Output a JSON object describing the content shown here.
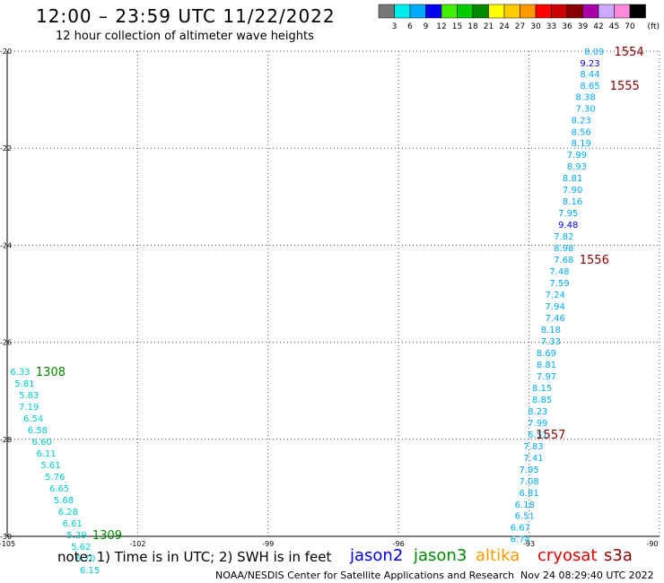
{
  "header": {
    "title": "12:00 – 23:59 UTC 11/22/2022",
    "subtitle": "12 hour collection of altimeter wave heights"
  },
  "scale": {
    "labels": [
      "3",
      "6",
      "9",
      "12",
      "15",
      "18",
      "21",
      "24",
      "27",
      "30",
      "33",
      "36",
      "39",
      "42",
      "45",
      "70"
    ],
    "unit": "(ft)",
    "colors": [
      "#777777",
      "#00eeee",
      "#00aaff",
      "#0000ee",
      "#44ee00",
      "#00cc00",
      "#008800",
      "#ffff00",
      "#ffcc00",
      "#ff9900",
      "#ff0000",
      "#cc0000",
      "#880000",
      "#aa00aa",
      "#ccaaff",
      "#ff88dd",
      "#000000"
    ]
  },
  "footer": {
    "note": "note:  1) Time is in UTC; 2) SWH is in feet",
    "satellites": [
      {
        "name": "jason2",
        "color": "#0000dd"
      },
      {
        "name": "jason3",
        "color": "#008800"
      },
      {
        "name": "altika",
        "color": "#ff9900"
      },
      {
        "name": "cryosat",
        "color": "#dd0000"
      },
      {
        "name": "s3a",
        "color": "#880000"
      }
    ],
    "credit": "NOAA/NESDIS Center for Satellite Applications and Research",
    "timestamp": "Nov 24 08:29:40 UTC 2022"
  },
  "chart_data": {
    "type": "scatter",
    "title": "12:00 – 23:59 UTC 11/22/2022",
    "subtitle": "12 hour collection of altimeter wave heights",
    "xlim": [
      -105,
      -90
    ],
    "ylim": [
      -30,
      -20
    ],
    "x_ticks": [
      "-105",
      "-102",
      "-99",
      "-96",
      "-93",
      "-90"
    ],
    "y_ticks": [
      "-20",
      "-22",
      "-24",
      "-26",
      "-28",
      "-30"
    ],
    "grid": true,
    "series": [
      {
        "name": "s3a",
        "color": "#880000",
        "points": [
          {
            "x": -91.5,
            "y": -20.0,
            "v": "8.09",
            "c": "#00aaff"
          },
          {
            "x": -91.6,
            "y": -20.24,
            "v": "9.23",
            "c": "#0000ee"
          },
          {
            "x": -91.6,
            "y": -20.46,
            "v": "8.44",
            "c": "#00aaff"
          },
          {
            "x": -91.6,
            "y": -20.7,
            "v": "8.65",
            "c": "#00aaff"
          },
          {
            "x": -91.7,
            "y": -20.93,
            "v": "8.38",
            "c": "#00aaff"
          },
          {
            "x": -91.7,
            "y": -21.17,
            "v": "7.30",
            "c": "#00aaff"
          },
          {
            "x": -91.8,
            "y": -21.41,
            "v": "8.23",
            "c": "#00aaff"
          },
          {
            "x": -91.8,
            "y": -21.65,
            "v": "8.56",
            "c": "#00aaff"
          },
          {
            "x": -91.8,
            "y": -21.89,
            "v": "8.19",
            "c": "#00aaff"
          },
          {
            "x": -91.9,
            "y": -22.13,
            "v": "7.99",
            "c": "#00aaff"
          },
          {
            "x": -91.9,
            "y": -22.37,
            "v": "8.93",
            "c": "#00aaff"
          },
          {
            "x": -92.0,
            "y": -22.61,
            "v": "8.81",
            "c": "#00aaff"
          },
          {
            "x": -92.0,
            "y": -22.85,
            "v": "7.90",
            "c": "#00aaff"
          },
          {
            "x": -92.0,
            "y": -23.09,
            "v": "8.16",
            "c": "#00aaff"
          },
          {
            "x": -92.1,
            "y": -23.33,
            "v": "7.95",
            "c": "#00aaff"
          },
          {
            "x": -92.1,
            "y": -23.57,
            "v": "9.48",
            "c": "#0000ee"
          },
          {
            "x": -92.2,
            "y": -23.81,
            "v": "7.82",
            "c": "#00aaff"
          },
          {
            "x": -92.2,
            "y": -24.05,
            "v": "8.98",
            "c": "#00aaff"
          },
          {
            "x": -92.2,
            "y": -24.29,
            "v": "7.68",
            "c": "#00aaff"
          },
          {
            "x": -92.3,
            "y": -24.53,
            "v": "7.48",
            "c": "#00aaff"
          },
          {
            "x": -92.3,
            "y": -24.77,
            "v": "7.59",
            "c": "#00aaff"
          },
          {
            "x": -92.4,
            "y": -25.01,
            "v": "7.24",
            "c": "#00aaff"
          },
          {
            "x": -92.4,
            "y": -25.25,
            "v": "7.94",
            "c": "#00aaff"
          },
          {
            "x": -92.4,
            "y": -25.49,
            "v": "7.46",
            "c": "#00aaff"
          },
          {
            "x": -92.5,
            "y": -25.73,
            "v": "8.18",
            "c": "#00aaff"
          },
          {
            "x": -92.5,
            "y": -25.97,
            "v": "7.33",
            "c": "#00aaff"
          },
          {
            "x": -92.6,
            "y": -26.21,
            "v": "8.69",
            "c": "#00aaff"
          },
          {
            "x": -92.6,
            "y": -26.45,
            "v": "8.81",
            "c": "#00aaff"
          },
          {
            "x": -92.6,
            "y": -26.69,
            "v": "7.97",
            "c": "#00aaff"
          },
          {
            "x": -92.7,
            "y": -26.93,
            "v": "8.15",
            "c": "#00aaff"
          },
          {
            "x": -92.7,
            "y": -27.17,
            "v": "8.85",
            "c": "#00aaff"
          },
          {
            "x": -92.8,
            "y": -27.41,
            "v": "8.23",
            "c": "#00aaff"
          },
          {
            "x": -92.8,
            "y": -27.65,
            "v": "7.99",
            "c": "#00aaff"
          },
          {
            "x": -92.8,
            "y": -27.89,
            "v": "6.51",
            "c": "#00aaff"
          },
          {
            "x": -92.9,
            "y": -28.13,
            "v": "7.83",
            "c": "#00aaff"
          },
          {
            "x": -92.9,
            "y": -28.37,
            "v": "7.41",
            "c": "#00aaff"
          },
          {
            "x": -93.0,
            "y": -28.61,
            "v": "7.95",
            "c": "#00aaff"
          },
          {
            "x": -93.0,
            "y": -28.85,
            "v": "7.08",
            "c": "#00aaff"
          },
          {
            "x": -93.0,
            "y": -29.09,
            "v": "6.81",
            "c": "#00aaff"
          },
          {
            "x": -93.1,
            "y": -29.33,
            "v": "6.18",
            "c": "#00aaff"
          },
          {
            "x": -93.1,
            "y": -29.57,
            "v": "6.51",
            "c": "#00aaff"
          },
          {
            "x": -93.2,
            "y": -29.81,
            "v": "6.67",
            "c": "#00aaff"
          },
          {
            "x": -93.2,
            "y": -30.05,
            "v": "6.74",
            "c": "#00aaff"
          }
        ],
        "time_labels": [
          {
            "x": -90.7,
            "y": -20.0,
            "t": "1554"
          },
          {
            "x": -90.8,
            "y": -20.7,
            "t": "1555"
          },
          {
            "x": -91.5,
            "y": -24.29,
            "t": "1556"
          },
          {
            "x": -92.5,
            "y": -27.89,
            "t": "1557"
          }
        ]
      },
      {
        "name": "jason3",
        "color": "#008800",
        "points": [
          {
            "x": -104.7,
            "y": -26.6,
            "v": "6.33",
            "c": "#00cccc"
          },
          {
            "x": -104.6,
            "y": -26.84,
            "v": "5.81",
            "c": "#00cccc"
          },
          {
            "x": -104.5,
            "y": -27.08,
            "v": "5.83",
            "c": "#00cccc"
          },
          {
            "x": -104.5,
            "y": -27.32,
            "v": "7.19",
            "c": "#00cccc"
          },
          {
            "x": -104.4,
            "y": -27.56,
            "v": "6.54",
            "c": "#00cccc"
          },
          {
            "x": -104.3,
            "y": -27.8,
            "v": "6.58",
            "c": "#00cccc"
          },
          {
            "x": -104.2,
            "y": -28.04,
            "v": "6.60",
            "c": "#00cccc"
          },
          {
            "x": -104.1,
            "y": -28.28,
            "v": "6.11",
            "c": "#00cccc"
          },
          {
            "x": -104.0,
            "y": -28.52,
            "v": "5.61",
            "c": "#00cccc"
          },
          {
            "x": -103.9,
            "y": -28.76,
            "v": "5.76",
            "c": "#00cccc"
          },
          {
            "x": -103.8,
            "y": -29.0,
            "v": "6.65",
            "c": "#00cccc"
          },
          {
            "x": -103.7,
            "y": -29.24,
            "v": "5.68",
            "c": "#00cccc"
          },
          {
            "x": -103.6,
            "y": -29.48,
            "v": "6.28",
            "c": "#00cccc"
          },
          {
            "x": -103.5,
            "y": -29.72,
            "v": "6.61",
            "c": "#00cccc"
          },
          {
            "x": -103.4,
            "y": -29.96,
            "v": "5.29",
            "c": "#00cccc"
          },
          {
            "x": -103.3,
            "y": -30.2,
            "v": "5.62",
            "c": "#00cccc"
          },
          {
            "x": -103.2,
            "y": -30.44,
            "v": "6.70",
            "c": "#00cccc"
          },
          {
            "x": -103.1,
            "y": -30.68,
            "v": "6.15",
            "c": "#00cccc"
          }
        ],
        "time_labels": [
          {
            "x": -104.0,
            "y": -26.6,
            "t": "1308"
          },
          {
            "x": -102.7,
            "y": -29.96,
            "t": "1309"
          }
        ]
      }
    ]
  }
}
